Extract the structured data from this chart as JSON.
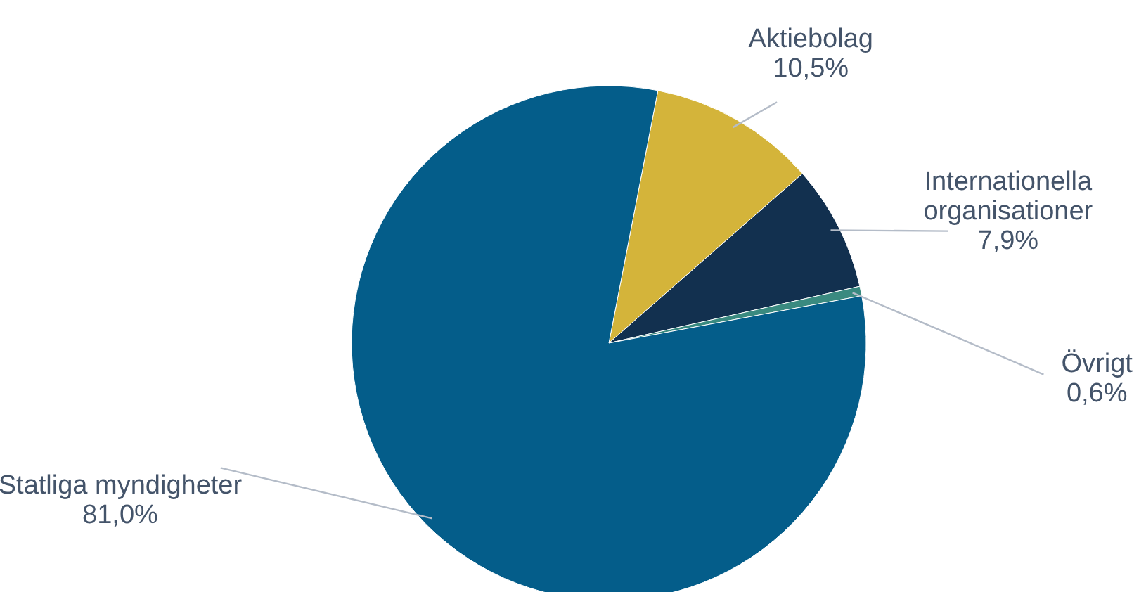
{
  "chart_data": {
    "type": "pie",
    "categories": [
      "Aktiebolag",
      "Internationella organisationer",
      "Övrigt",
      "Statliga myndigheter"
    ],
    "values": [
      10.5,
      7.9,
      0.6,
      81.0
    ],
    "value_labels": [
      "10,5%",
      "7,9%",
      "0,6%",
      "81,0%"
    ],
    "colors": [
      "#d4b43a",
      "#12304f",
      "#3a8a80",
      "#045d8a"
    ]
  }
}
